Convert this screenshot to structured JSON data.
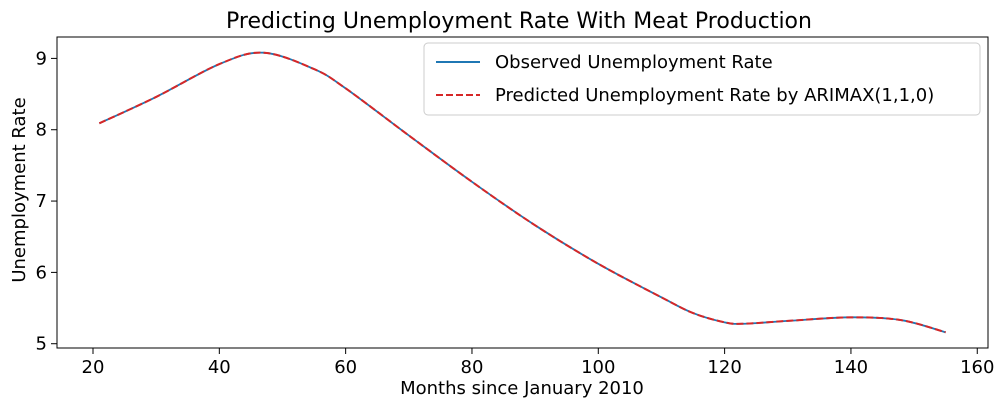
{
  "chart_data": {
    "type": "line",
    "title": "Predicting Unemployment Rate With Meat Production",
    "xlabel": "Months since January 2010",
    "ylabel": "Unemployment Rate",
    "xlim": [
      14.3,
      161.7
    ],
    "ylim": [
      4.94,
      9.3
    ],
    "xticks": [
      20,
      40,
      60,
      80,
      100,
      120,
      140,
      160
    ],
    "yticks": [
      5,
      6,
      7,
      8,
      9
    ],
    "grid": false,
    "legend": "top-right",
    "x": [
      21,
      30,
      40,
      47,
      55,
      60,
      70,
      80,
      90,
      100,
      110,
      115,
      120,
      123,
      130,
      140,
      148,
      155
    ],
    "series": [
      {
        "name": "Observed Unemployment Rate",
        "color": "#1f77b4",
        "style": "solid",
        "values": [
          8.09,
          8.46,
          8.92,
          9.08,
          8.85,
          8.58,
          7.92,
          7.27,
          6.66,
          6.12,
          5.65,
          5.43,
          5.3,
          5.28,
          5.32,
          5.37,
          5.33,
          5.16
        ]
      },
      {
        "name": "Predicted Unemployment Rate by ARIMAX(1,1,0)",
        "color": "#d62728",
        "style": "dashed",
        "values": [
          8.09,
          8.46,
          8.92,
          9.08,
          8.85,
          8.58,
          7.92,
          7.27,
          6.66,
          6.12,
          5.65,
          5.43,
          5.3,
          5.28,
          5.32,
          5.37,
          5.33,
          5.16
        ]
      }
    ]
  }
}
